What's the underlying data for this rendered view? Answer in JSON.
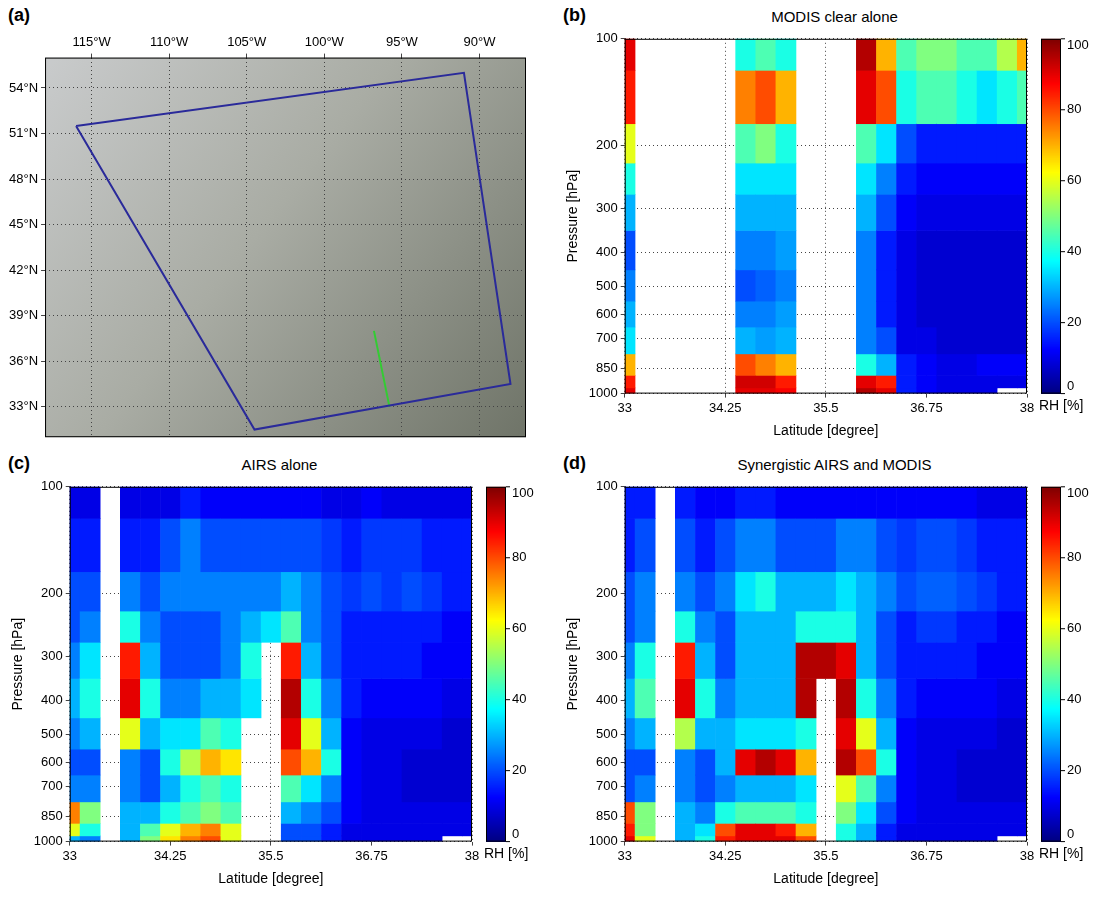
{
  "chart_data": [
    {
      "type": "map",
      "panel_label": "(a)",
      "xlim": [
        -118,
        -87
      ],
      "xticks": [
        {
          "value": -115,
          "label": "115°W"
        },
        {
          "value": -110,
          "label": "110°W"
        },
        {
          "value": -105,
          "label": "105°W"
        },
        {
          "value": -100,
          "label": "100°W"
        },
        {
          "value": -95,
          "label": "95°W"
        },
        {
          "value": -90,
          "label": "90°W"
        }
      ],
      "ylim": [
        31,
        56
      ],
      "yticks": [
        {
          "value": 33,
          "label": "33°N"
        },
        {
          "value": 36,
          "label": "36°N"
        },
        {
          "value": 39,
          "label": "39°N"
        },
        {
          "value": 42,
          "label": "42°N"
        },
        {
          "value": 45,
          "label": "45°N"
        },
        {
          "value": 48,
          "label": "48°N"
        },
        {
          "value": 51,
          "label": "51°N"
        },
        {
          "value": 54,
          "label": "54°N"
        }
      ],
      "grid": true,
      "series": [
        {
          "color": "#2a2a9a",
          "x": [
            -116,
            -91,
            -88,
            -104.5,
            -116
          ],
          "y": [
            51.5,
            55,
            34.5,
            31.5,
            51.5
          ]
        },
        {
          "color": "#33cc33",
          "x": [
            -96.8,
            -95.8
          ],
          "y": [
            38,
            33
          ]
        }
      ]
    },
    {
      "type": "heatmap",
      "panel_label": "(b)",
      "title": "MODIS clear alone",
      "x_label": "Latitude [degree]",
      "y_label": "Pressure [hPa]",
      "xlim": [
        33,
        38
      ],
      "xticks": [
        33,
        34.25,
        35.5,
        36.75,
        38
      ],
      "ylim": [
        100,
        1000
      ],
      "yticks": [
        100,
        200,
        300,
        400,
        500,
        600,
        700,
        850,
        1000
      ],
      "log": "y",
      "grid": true,
      "x": [
        33,
        33.25,
        33.5,
        33.75,
        34,
        34.25,
        34.5,
        34.75,
        35,
        35.25,
        35.5,
        35.75,
        36,
        36.25,
        36.5,
        36.75,
        37,
        37.25,
        37.5,
        37.75,
        38
      ],
      "y": [
        1000,
        925,
        850,
        700,
        600,
        500,
        400,
        300,
        250,
        200,
        150,
        100
      ],
      "values": [
        [
          90,
          85,
          70,
          35,
          30,
          25,
          20,
          30,
          40,
          60,
          85,
          90
        ],
        [
          null,
          null,
          null,
          null,
          null,
          null,
          null,
          null,
          null,
          null,
          null,
          null
        ],
        [
          null,
          null,
          null,
          null,
          null,
          null,
          null,
          null,
          null,
          null,
          null,
          null
        ],
        [
          null,
          null,
          null,
          null,
          null,
          null,
          null,
          null,
          null,
          null,
          null,
          null
        ],
        [
          null,
          null,
          null,
          null,
          null,
          null,
          null,
          null,
          null,
          null,
          null,
          null
        ],
        [
          null,
          null,
          null,
          null,
          null,
          null,
          null,
          null,
          null,
          null,
          null,
          null
        ],
        [
          90,
          92,
          80,
          30,
          25,
          20,
          25,
          30,
          35,
          45,
          75,
          40
        ],
        [
          90,
          92,
          75,
          28,
          25,
          22,
          25,
          30,
          35,
          50,
          80,
          45
        ],
        [
          88,
          85,
          70,
          30,
          28,
          25,
          28,
          30,
          35,
          40,
          70,
          40
        ],
        [
          null,
          null,
          null,
          null,
          null,
          null,
          null,
          null,
          null,
          null,
          null,
          null
        ],
        [
          null,
          null,
          null,
          null,
          null,
          null,
          null,
          null,
          null,
          null,
          null,
          null
        ],
        [
          null,
          null,
          null,
          null,
          null,
          null,
          null,
          null,
          null,
          null,
          null,
          null
        ],
        [
          95,
          90,
          40,
          25,
          25,
          25,
          25,
          30,
          35,
          45,
          90,
          95
        ],
        [
          90,
          85,
          30,
          20,
          15,
          15,
          15,
          20,
          25,
          35,
          80,
          70
        ],
        [
          15,
          15,
          15,
          10,
          10,
          10,
          10,
          12,
          15,
          20,
          40,
          45
        ],
        [
          12,
          12,
          12,
          10,
          8,
          8,
          8,
          10,
          12,
          15,
          45,
          50
        ],
        [
          10,
          10,
          10,
          8,
          8,
          8,
          8,
          10,
          12,
          15,
          45,
          50
        ],
        [
          10,
          10,
          10,
          8,
          8,
          8,
          8,
          10,
          12,
          15,
          40,
          45
        ],
        [
          10,
          10,
          12,
          8,
          8,
          8,
          8,
          10,
          12,
          15,
          35,
          45
        ],
        [
          null,
          10,
          12,
          8,
          8,
          8,
          8,
          10,
          12,
          15,
          40,
          55
        ],
        [
          null,
          10,
          12,
          8,
          8,
          8,
          8,
          10,
          12,
          15,
          45,
          70
        ]
      ],
      "colorbar": {
        "range": [
          0,
          100
        ],
        "ticks": [
          0,
          20,
          40,
          60,
          80,
          100
        ],
        "label": "RH [%]"
      }
    },
    {
      "type": "heatmap",
      "panel_label": "(c)",
      "title": "AIRS alone",
      "x_label": "Latitude [degree]",
      "y_label": "Pressure [hPa]",
      "xlim": [
        33,
        38
      ],
      "xticks": [
        33,
        34.25,
        35.5,
        36.75,
        38
      ],
      "ylim": [
        100,
        1000
      ],
      "yticks": [
        100,
        200,
        300,
        400,
        500,
        600,
        700,
        850,
        1000
      ],
      "log": "y",
      "grid": true,
      "x": [
        33,
        33.25,
        33.5,
        33.75,
        34,
        34.25,
        34.5,
        34.75,
        35,
        35.25,
        35.5,
        35.75,
        36,
        36.25,
        36.5,
        36.75,
        37,
        37.25,
        37.5,
        37.75,
        38
      ],
      "y": [
        1000,
        925,
        850,
        700,
        600,
        500,
        400,
        300,
        250,
        200,
        150,
        100
      ],
      "values": [
        [
          30,
          60,
          75,
          25,
          20,
          25,
          30,
          25,
          20,
          20,
          15,
          10
        ],
        [
          25,
          40,
          50,
          25,
          20,
          30,
          40,
          35,
          25,
          20,
          15,
          10
        ],
        [
          null,
          null,
          null,
          null,
          null,
          null,
          null,
          null,
          null,
          null,
          null,
          null
        ],
        [
          30,
          30,
          30,
          25,
          25,
          60,
          90,
          85,
          40,
          25,
          15,
          10
        ],
        [
          50,
          45,
          30,
          20,
          20,
          30,
          40,
          30,
          25,
          20,
          15,
          10
        ],
        [
          65,
          60,
          40,
          30,
          40,
          35,
          25,
          20,
          20,
          25,
          20,
          10
        ],
        [
          75,
          70,
          45,
          40,
          55,
          35,
          25,
          20,
          20,
          25,
          25,
          15
        ],
        [
          80,
          75,
          50,
          45,
          70,
          45,
          30,
          20,
          20,
          25,
          20,
          12
        ],
        [
          60,
          60,
          45,
          40,
          65,
          40,
          30,
          25,
          25,
          25,
          20,
          12
        ],
        [
          null,
          null,
          null,
          null,
          null,
          null,
          35,
          40,
          30,
          25,
          20,
          12
        ],
        [
          null,
          null,
          null,
          null,
          null,
          null,
          null,
          null,
          35,
          25,
          20,
          12
        ],
        [
          20,
          20,
          30,
          45,
          80,
          90,
          95,
          85,
          45,
          30,
          20,
          12
        ],
        [
          20,
          20,
          25,
          35,
          70,
          60,
          40,
          30,
          25,
          25,
          20,
          12
        ],
        [
          15,
          15,
          20,
          25,
          40,
          30,
          25,
          20,
          20,
          20,
          18,
          10
        ],
        [
          10,
          10,
          12,
          12,
          12,
          12,
          15,
          15,
          15,
          18,
          15,
          10
        ],
        [
          10,
          10,
          10,
          10,
          10,
          10,
          12,
          15,
          15,
          20,
          18,
          12
        ],
        [
          10,
          10,
          10,
          10,
          10,
          10,
          12,
          15,
          15,
          18,
          18,
          10
        ],
        [
          10,
          10,
          10,
          8,
          8,
          10,
          12,
          15,
          15,
          20,
          18,
          10
        ],
        [
          10,
          10,
          10,
          8,
          8,
          10,
          12,
          12,
          15,
          18,
          15,
          10
        ],
        [
          null,
          10,
          10,
          8,
          8,
          8,
          10,
          12,
          12,
          15,
          15,
          10
        ],
        [
          null,
          10,
          10,
          8,
          8,
          8,
          10,
          12,
          12,
          15,
          15,
          10
        ]
      ],
      "colorbar": {
        "range": [
          0,
          100
        ],
        "ticks": [
          0,
          20,
          40,
          60,
          80,
          100
        ],
        "label": "RH [%]"
      }
    },
    {
      "type": "heatmap",
      "panel_label": "(d)",
      "title": "Synergistic AIRS and MODIS",
      "x_label": "Latitude [degree]",
      "y_label": "Pressure [hPa]",
      "xlim": [
        33,
        38
      ],
      "xticks": [
        33,
        34.25,
        35.5,
        36.75,
        38
      ],
      "ylim": [
        100,
        1000
      ],
      "yticks": [
        100,
        200,
        300,
        400,
        500,
        600,
        700,
        850,
        1000
      ],
      "log": "y",
      "grid": true,
      "x": [
        33,
        33.25,
        33.5,
        33.75,
        34,
        34.25,
        34.5,
        34.75,
        35,
        35.25,
        35.5,
        35.75,
        36,
        36.25,
        36.5,
        36.75,
        37,
        37.25,
        37.5,
        37.75,
        38
      ],
      "y": [
        1000,
        925,
        850,
        700,
        600,
        500,
        400,
        300,
        250,
        200,
        150,
        100
      ],
      "values": [
        [
          90,
          85,
          80,
          20,
          20,
          25,
          30,
          25,
          20,
          20,
          15,
          15
        ],
        [
          60,
          50,
          50,
          25,
          20,
          30,
          45,
          40,
          25,
          25,
          20,
          15
        ],
        [
          null,
          null,
          null,
          null,
          null,
          null,
          null,
          null,
          null,
          null,
          null,
          null
        ],
        [
          30,
          30,
          30,
          25,
          25,
          55,
          90,
          85,
          40,
          25,
          20,
          15
        ],
        [
          40,
          35,
          25,
          20,
          20,
          30,
          40,
          30,
          25,
          20,
          15,
          12
        ],
        [
          85,
          80,
          40,
          25,
          30,
          30,
          25,
          20,
          20,
          25,
          20,
          12
        ],
        [
          90,
          90,
          45,
          30,
          90,
          35,
          30,
          30,
          30,
          35,
          25,
          15
        ],
        [
          90,
          90,
          45,
          30,
          95,
          35,
          30,
          30,
          30,
          40,
          25,
          15
        ],
        [
          90,
          85,
          45,
          30,
          90,
          35,
          30,
          30,
          30,
          30,
          20,
          12
        ],
        [
          80,
          70,
          40,
          35,
          70,
          40,
          95,
          95,
          40,
          30,
          20,
          12
        ],
        [
          null,
          null,
          null,
          null,
          null,
          null,
          null,
          95,
          40,
          30,
          20,
          12
        ],
        [
          40,
          40,
          50,
          60,
          95,
          90,
          95,
          90,
          40,
          35,
          25,
          12
        ],
        [
          30,
          30,
          35,
          45,
          80,
          60,
          40,
          30,
          30,
          30,
          25,
          12
        ],
        [
          15,
          15,
          20,
          25,
          40,
          30,
          25,
          20,
          20,
          25,
          20,
          12
        ],
        [
          10,
          10,
          12,
          12,
          12,
          12,
          15,
          15,
          15,
          20,
          18,
          12
        ],
        [
          10,
          10,
          10,
          10,
          10,
          10,
          12,
          15,
          18,
          22,
          20,
          12
        ],
        [
          10,
          10,
          10,
          10,
          10,
          10,
          12,
          15,
          18,
          22,
          20,
          12
        ],
        [
          10,
          10,
          10,
          8,
          8,
          10,
          12,
          15,
          15,
          20,
          18,
          12
        ],
        [
          10,
          10,
          10,
          8,
          8,
          10,
          12,
          12,
          15,
          18,
          15,
          10
        ],
        [
          null,
          10,
          10,
          8,
          8,
          8,
          10,
          12,
          12,
          15,
          15,
          10
        ],
        [
          null,
          10,
          10,
          8,
          8,
          8,
          10,
          12,
          12,
          15,
          15,
          10
        ]
      ],
      "colorbar": {
        "range": [
          0,
          100
        ],
        "ticks": [
          0,
          20,
          40,
          60,
          80,
          100
        ],
        "label": "RH [%]"
      }
    }
  ]
}
